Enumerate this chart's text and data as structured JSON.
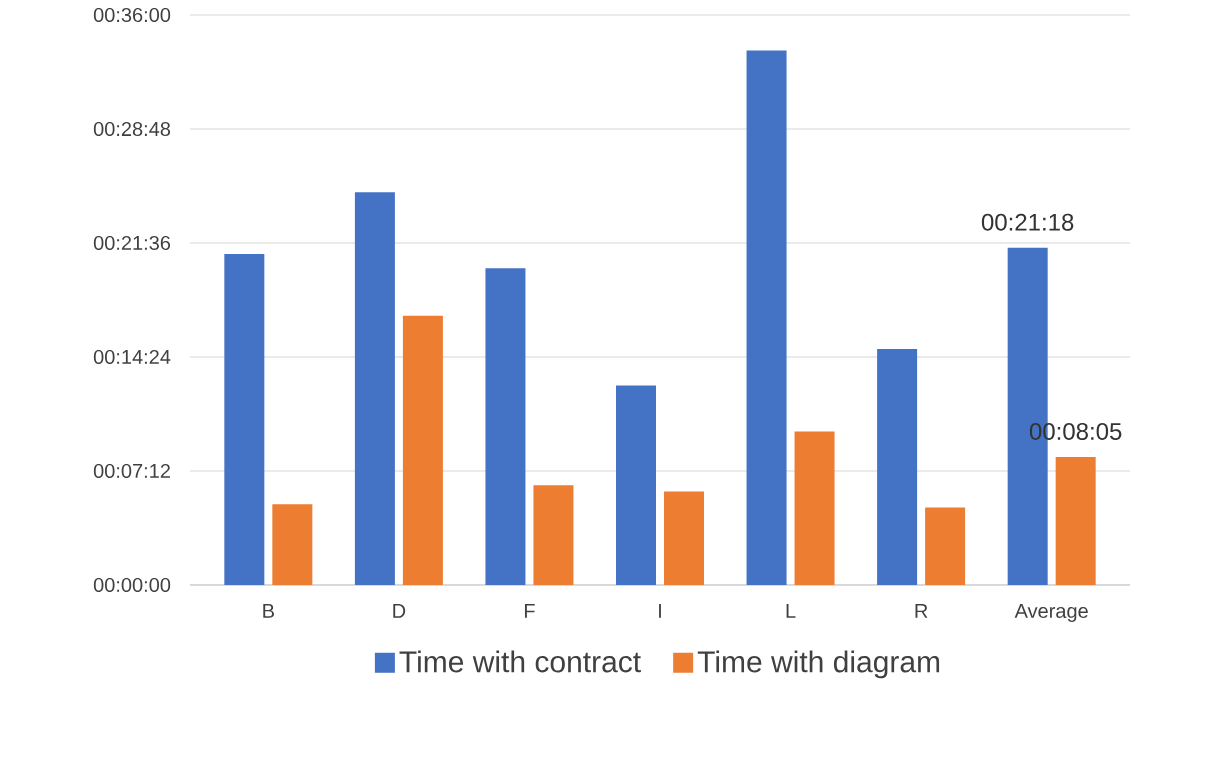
{
  "chart_data": {
    "type": "bar",
    "categories": [
      "B",
      "D",
      "F",
      "I",
      "L",
      "R",
      "Average"
    ],
    "series": [
      {
        "name": "Time with contract",
        "color": "#4472c4",
        "values": [
          20.9,
          24.8,
          20.0,
          12.6,
          33.75,
          14.9,
          21.3
        ],
        "value_labels": [
          null,
          null,
          null,
          null,
          null,
          null,
          "00:21:18"
        ]
      },
      {
        "name": "Time with diagram",
        "color": "#ed7d31",
        "values": [
          5.1,
          17.0,
          6.3,
          5.9,
          9.7,
          4.9,
          8.083
        ],
        "value_labels": [
          null,
          null,
          null,
          null,
          null,
          null,
          "00:08:05"
        ]
      }
    ],
    "ylim": [
      0,
      36
    ],
    "yticks": [
      {
        "value": 0,
        "label": "00:00:00"
      },
      {
        "value": 7.2,
        "label": "00:07:12"
      },
      {
        "value": 14.4,
        "label": "00:14:24"
      },
      {
        "value": 21.6,
        "label": "00:21:36"
      },
      {
        "value": 28.8,
        "label": "00:28:48"
      },
      {
        "value": 36,
        "label": "00:36:00"
      }
    ],
    "grid": "y",
    "legend": "bottom"
  }
}
